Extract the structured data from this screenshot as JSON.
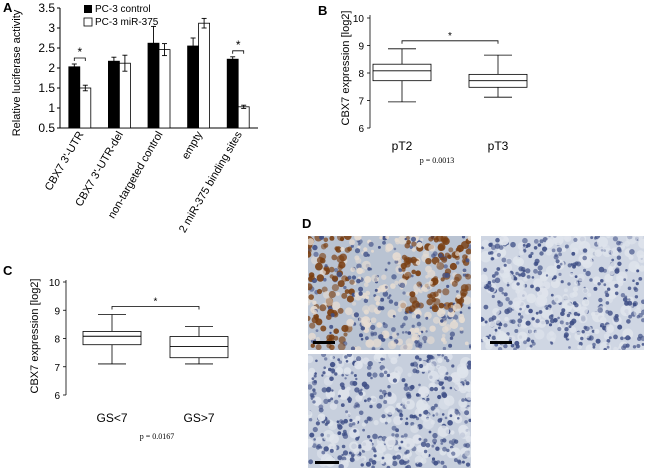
{
  "panels": {
    "A": "A",
    "B": "B",
    "C": "C",
    "D": "D"
  },
  "chart_data": [
    {
      "panel": "A",
      "type": "bar",
      "ylabel": "Relative luciferase activity",
      "ylim": [
        0.5,
        3.5
      ],
      "yticks": [
        "0.5",
        "1",
        "1.5",
        "2",
        "2.5",
        "3",
        "3.5"
      ],
      "categories": [
        "CBX7 3'-UTR",
        "CBX7 3'-UTR-del",
        "non-targeted control",
        "empty",
        "2 miR-375 binding sites"
      ],
      "series": [
        {
          "name": "PC-3 control",
          "values": [
            2.03,
            2.17,
            2.62,
            2.55,
            2.22
          ],
          "errors": [
            0.07,
            0.1,
            0.42,
            0.2,
            0.06
          ],
          "color": "#000000"
        },
        {
          "name": "PC-3 miR-375",
          "values": [
            1.5,
            2.12,
            2.46,
            3.12,
            1.03
          ],
          "errors": [
            0.07,
            0.2,
            0.15,
            0.12,
            0.04
          ],
          "color": "#ffffff"
        }
      ],
      "significance": [
        {
          "categoryIndex": 0,
          "label": "*"
        },
        {
          "categoryIndex": 4,
          "label": "*"
        }
      ]
    },
    {
      "panel": "B",
      "type": "boxplot",
      "ylabel": "CBX7 expression [log2]",
      "ylim": [
        6,
        10
      ],
      "yticks": [
        "6",
        "7",
        "8",
        "9",
        "10"
      ],
      "categories": [
        "pT2",
        "pT3"
      ],
      "boxes": [
        {
          "min": 6.95,
          "q1": 7.72,
          "median": 8.08,
          "q3": 8.32,
          "max": 8.88
        },
        {
          "min": 7.12,
          "q1": 7.48,
          "median": 7.72,
          "q3": 7.95,
          "max": 8.65
        }
      ],
      "significance": "*",
      "pvalue": "p = 0.0013"
    },
    {
      "panel": "C",
      "type": "boxplot",
      "ylabel": "CBX7 expression [log2]",
      "ylim": [
        6,
        10
      ],
      "yticks": [
        "6",
        "7",
        "8",
        "9",
        "10"
      ],
      "categories": [
        "GS<7",
        "GS>7"
      ],
      "boxes": [
        {
          "min": 7.1,
          "q1": 7.78,
          "median": 8.08,
          "q3": 8.25,
          "max": 8.85
        },
        {
          "min": 7.1,
          "q1": 7.32,
          "median": 7.72,
          "q3": 8.07,
          "max": 8.42
        }
      ],
      "significance": "*",
      "pvalue": "p = 0.0167"
    }
  ],
  "micrographs": [
    {
      "id": "d1",
      "stain": "strong nuclear brown (positive)"
    },
    {
      "id": "d2",
      "stain": "blue, negative"
    },
    {
      "id": "d3",
      "stain": "blue, negative"
    }
  ],
  "colors": {
    "brown": "#7a3f12",
    "blue": "#3f4f86",
    "light": "#dfe4ec"
  }
}
